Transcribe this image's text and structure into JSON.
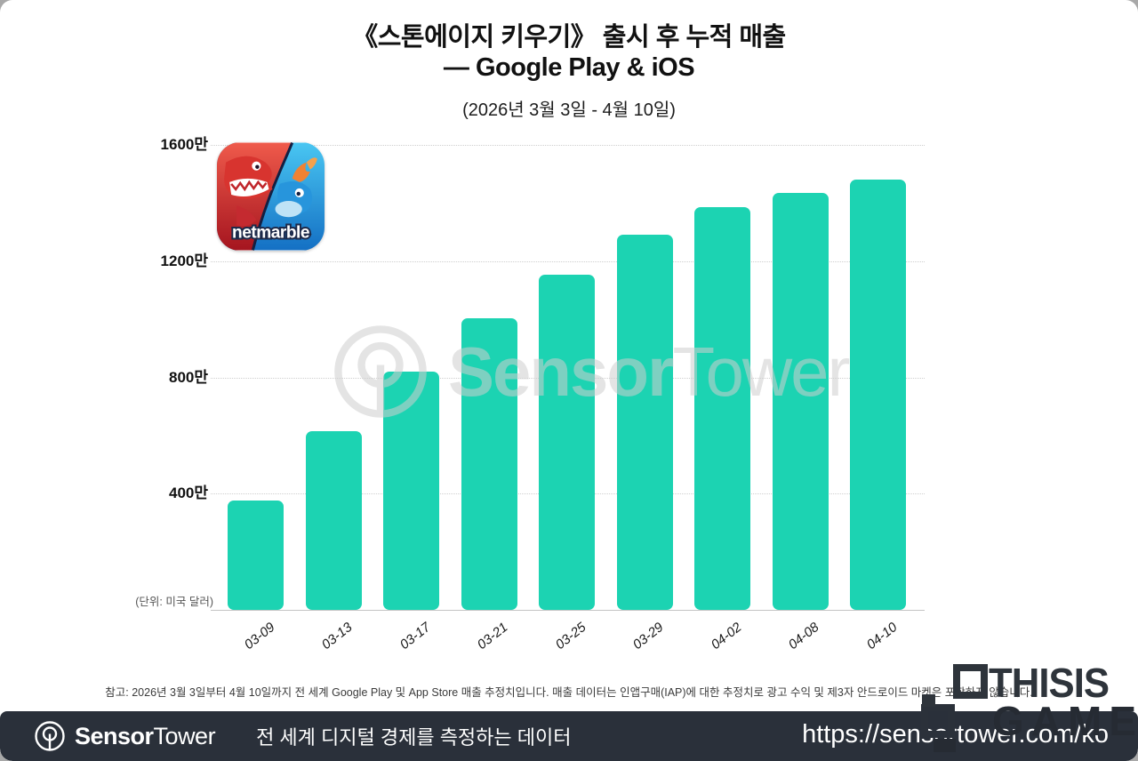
{
  "header": {
    "title_line1": "《스톤에이지 키우기》 출시 후 누적 매출",
    "title_line2": "— Google Play & iOS",
    "subtitle": "(2026년 3월 3일 - 4월 10일)"
  },
  "chart_data": {
    "type": "bar",
    "title": "《스톤에이지 키우기》 출시 후 누적 매출 — Google Play & iOS (2026년 3월 3일 - 4월 10일)",
    "categories": [
      "03-09",
      "03-13",
      "03-17",
      "03-21",
      "03-25",
      "03-29",
      "04-02",
      "04-08",
      "04-10"
    ],
    "values": [
      375,
      615,
      820,
      1005,
      1155,
      1290,
      1385,
      1435,
      1480
    ],
    "value_unit": "만 (10,000 USD)",
    "unit_label": "(단위: 미국 달러)",
    "xlabel": "",
    "ylabel": "",
    "y_ticks": [
      400,
      800,
      1200,
      1600
    ],
    "y_tick_labels": [
      "400만",
      "800만",
      "1200만",
      "1600만"
    ],
    "ylim": [
      0,
      1700
    ],
    "grid": true,
    "legend": false,
    "bar_color": "#1cd3b2",
    "app_icon_publisher": "netmarble"
  },
  "watermark": {
    "brand_bold": "Sensor",
    "brand_light": "Tower"
  },
  "footnote": "참고: 2026년 3월 3일부터 4월 10일까지 전 세계 Google Play 및 App Store 매출 추정치입니다. 매출 데이터는 인앱구매(IAP)에 대한 추정치로 광고 수익 및 제3자 안드로이드 마켓은 포함하지 않습니다.",
  "footer": {
    "brand_bold": "Sensor",
    "brand_light": "Tower",
    "tagline": "전 세계 디지털 경제를 측정하는 데이터",
    "url": "https://sensortower.com/ko",
    "bg_color": "#2a303a"
  },
  "overlay_logo": {
    "line1": "THISIS",
    "line2": "GAME"
  }
}
